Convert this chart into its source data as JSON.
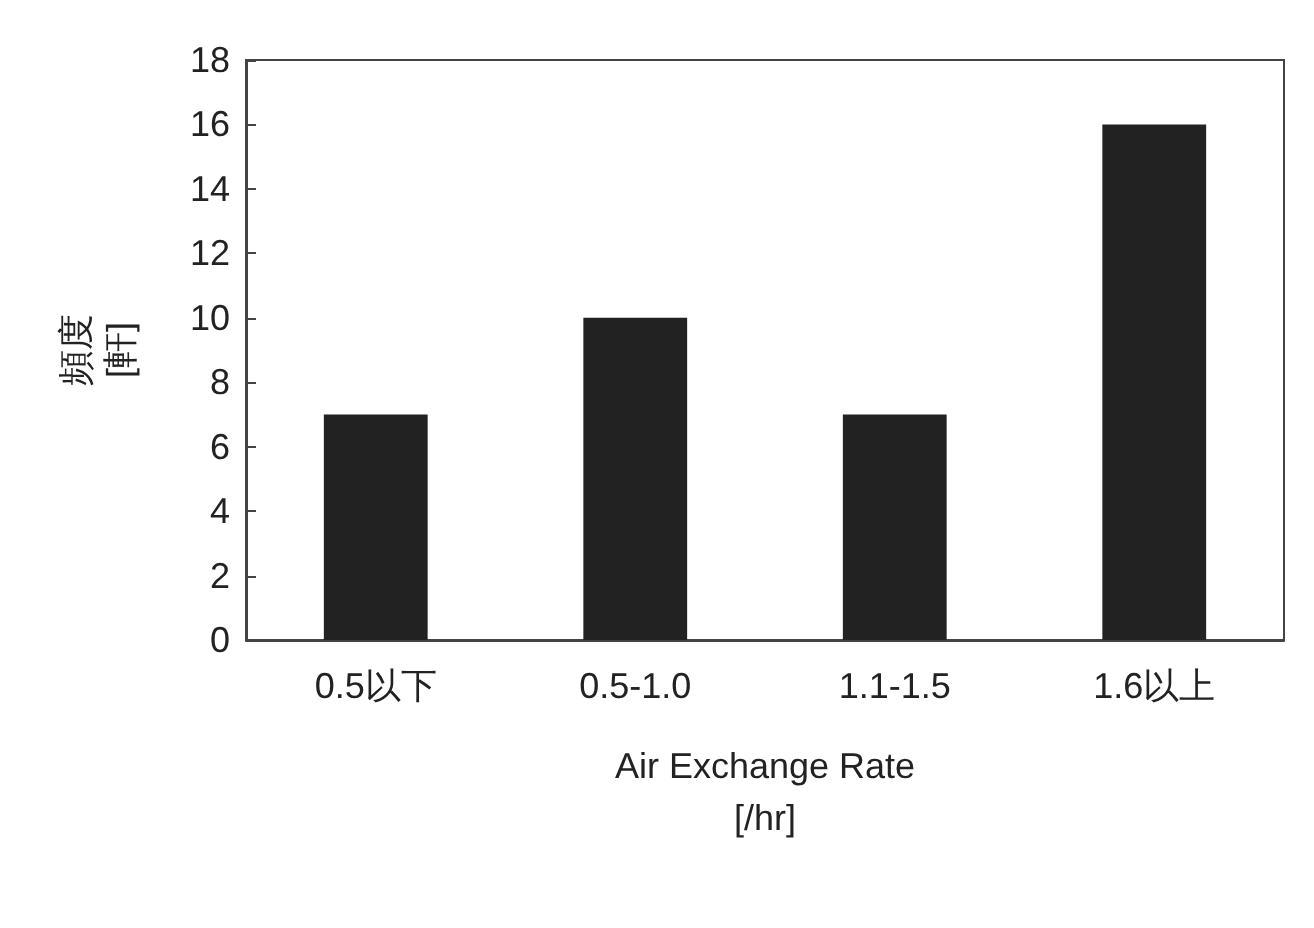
{
  "chart_data": {
    "type": "bar",
    "categories": [
      "0.5以下",
      "0.5-1.0",
      "1.1-1.5",
      "1.6以上"
    ],
    "values": [
      7,
      10,
      7,
      16
    ],
    "color": "#222222",
    "xlabel": "Air Exchange Rate\n[/hr]",
    "ylabel": "頻度\n[軒]",
    "ylim": [
      0,
      18
    ],
    "yticks": [
      0,
      2,
      4,
      6,
      8,
      10,
      12,
      14,
      16,
      18
    ],
    "grid": false
  }
}
